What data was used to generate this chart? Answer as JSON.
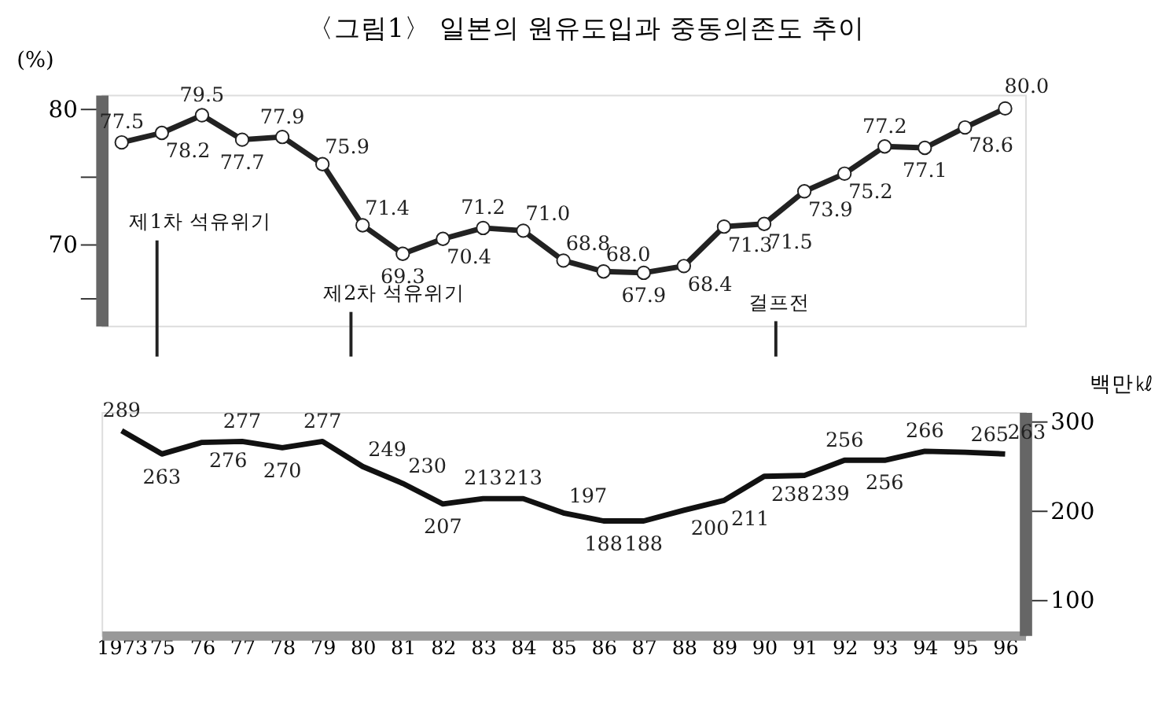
{
  "chart_data": [
    {
      "type": "line",
      "title": "〈그림1〉 일본의 원유도입과 중동의존도 추이",
      "ylabel": "(%)",
      "categories": [
        "1973",
        "75",
        "76",
        "77",
        "78",
        "79",
        "80",
        "81",
        "82",
        "83",
        "84",
        "85",
        "86",
        "87",
        "88",
        "89",
        "90",
        "91",
        "92",
        "93",
        "94",
        "95",
        "96"
      ],
      "series": [
        {
          "color": "#222222",
          "values": [
            77.5,
            78.2,
            79.5,
            77.7,
            77.9,
            75.9,
            71.4,
            69.3,
            70.4,
            71.2,
            71.0,
            68.8,
            68.0,
            67.9,
            68.4,
            71.3,
            71.5,
            73.9,
            75.2,
            77.2,
            77.1,
            78.6,
            80.0
          ]
        }
      ],
      "ylim": [
        64,
        81
      ],
      "yticks": [
        80,
        {
          "value": 75,
          "label": null
        },
        70,
        {
          "value": 66,
          "label": null
        }
      ],
      "value_labels": [
        "77.5",
        "78.2",
        "79.5",
        "77.7",
        "77.9",
        "75.9",
        "71.4",
        "69.3",
        "70.4",
        "71.2",
        "71.0",
        "68.8",
        "68.0",
        "67.9",
        "68.4",
        "71.3",
        "71.5",
        "73.9",
        "75.2",
        "77.2",
        "77.1",
        "78.6",
        "80.0"
      ],
      "marker": "circle",
      "tick_labels": "y",
      "grid": false,
      "annotations": [
        "제1차 석유위기",
        "제2차 석유위기",
        "걸프전"
      ]
    },
    {
      "type": "line",
      "ylabel": "백만㎘",
      "categories": [
        "1973",
        "75",
        "76",
        "77",
        "78",
        "79",
        "80",
        "81",
        "82",
        "83",
        "84",
        "85",
        "86",
        "87",
        "88",
        "89",
        "90",
        "91",
        "92",
        "93",
        "94",
        "95",
        "96"
      ],
      "series": [
        {
          "color": "#111111",
          "values": [
            289,
            263,
            276,
            277,
            270,
            277,
            249,
            230,
            207,
            213,
            213,
            197,
            188,
            188,
            200,
            211,
            238,
            239,
            256,
            256,
            266,
            265,
            263
          ]
        }
      ],
      "ylim": [
        60,
        310
      ],
      "yticks": [
        300,
        200,
        100
      ],
      "marker": "none",
      "data_labels": true,
      "grid": false
    }
  ]
}
